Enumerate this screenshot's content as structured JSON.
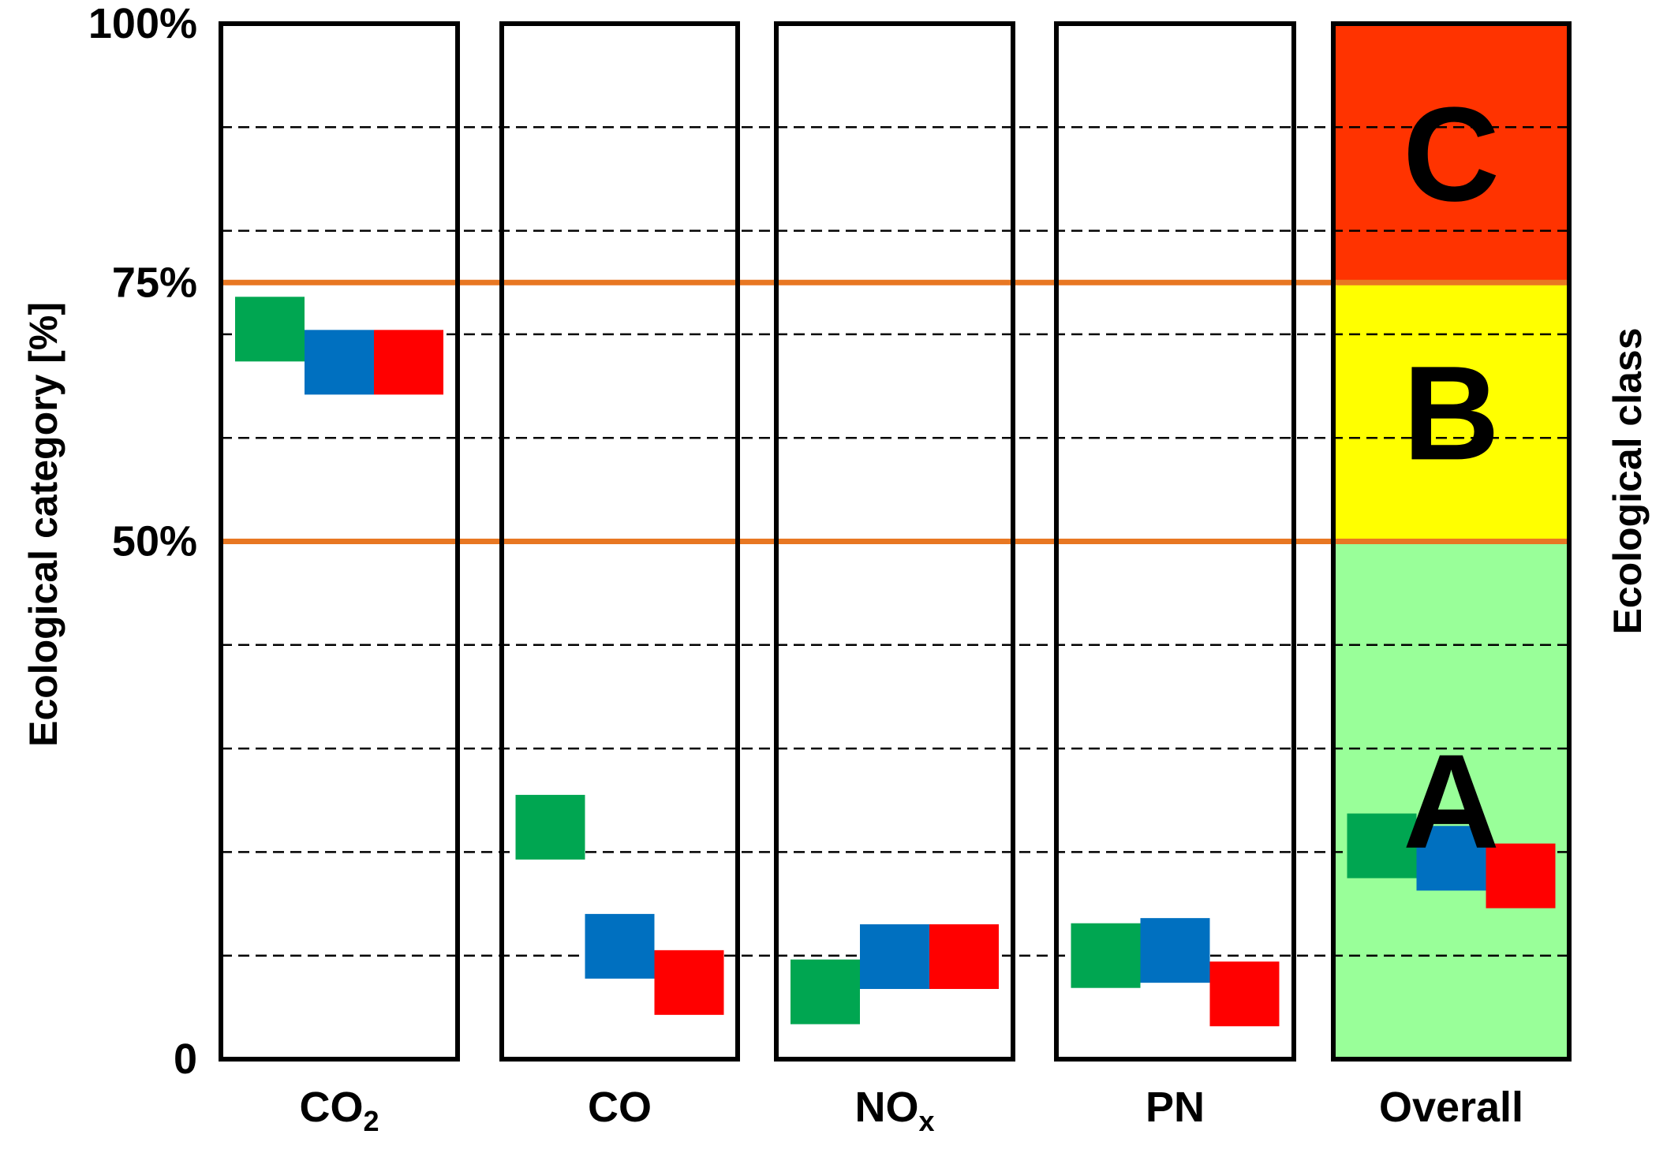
{
  "chart_data": {
    "type": "marker",
    "ylabel": "Ecological category [%]",
    "y2label": "Ecological class",
    "ylim": [
      0,
      100
    ],
    "y_ticks": [
      "0",
      "50%",
      "75%",
      "100%"
    ],
    "y_tick_values": [
      0,
      50,
      75,
      100
    ],
    "grid": {
      "dashed_values": [
        10,
        20,
        30,
        40,
        60,
        70,
        80,
        90
      ]
    },
    "thresholds": [
      {
        "value": 50,
        "color": "#E87722"
      },
      {
        "value": 75,
        "color": "#E87722"
      }
    ],
    "categories": [
      {
        "label": "CO",
        "sub": "2"
      },
      {
        "label": "CO",
        "sub": ""
      },
      {
        "label": "NO",
        "sub": "x"
      },
      {
        "label": "PN",
        "sub": ""
      },
      {
        "label": "Overall",
        "sub": ""
      }
    ],
    "classes": [
      {
        "label": "A",
        "from": 0,
        "to": 50,
        "color": "#99FF99"
      },
      {
        "label": "B",
        "from": 50,
        "to": 75,
        "color": "#FFFF00"
      },
      {
        "label": "C",
        "from": 75,
        "to": 100,
        "color": "#FF3300"
      }
    ],
    "series_colors": [
      "#00A651",
      "#0070C0",
      "#FF0000"
    ],
    "series": [
      {
        "values": [
          70.5,
          22.4,
          6.5,
          10.0,
          20.6
        ]
      },
      {
        "values": [
          67.3,
          10.9,
          9.9,
          10.5,
          19.4
        ]
      },
      {
        "values": [
          67.3,
          7.4,
          9.9,
          6.3,
          17.7
        ]
      }
    ]
  }
}
